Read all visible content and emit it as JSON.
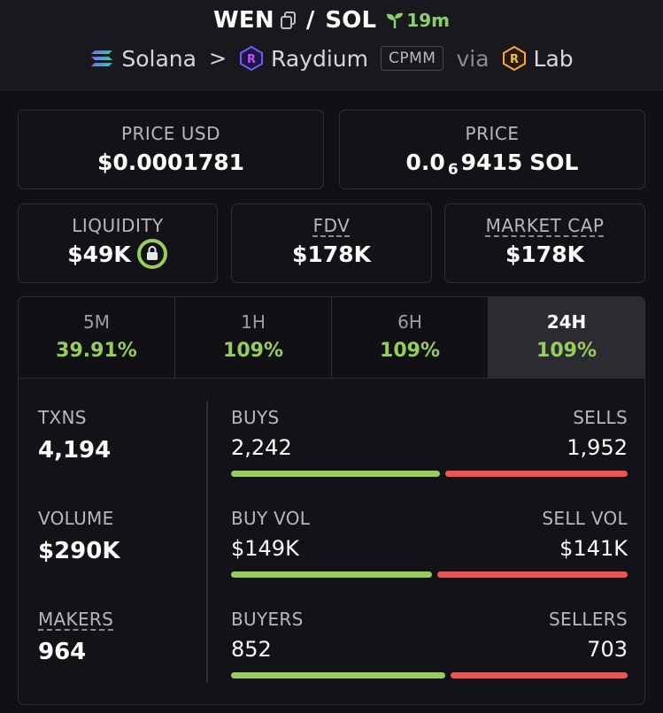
{
  "header": {
    "base_token": "WEN",
    "quote_token": "SOL",
    "separator": "/",
    "age": "19m",
    "chain": "Solana",
    "chevron": ">",
    "dex": "Raydium",
    "pool_type": "CPMM",
    "via": "via",
    "launchpad": "Lab",
    "icons": {
      "copy": "copy-icon",
      "age": "sprout-icon",
      "chain": "solana-icon",
      "dex": "raydium-icon",
      "launchpad": "lab-icon"
    }
  },
  "price_usd": {
    "label": "PRICE USD",
    "value": "$0.0001781"
  },
  "price_native": {
    "label": "PRICE",
    "prefix": "0.0",
    "subscript": "6",
    "digits": "9415",
    "unit": "SOL"
  },
  "liquidity": {
    "label": "LIQUIDITY",
    "value": "$49K",
    "icon": "lock-icon"
  },
  "fdv": {
    "label": "FDV",
    "value": "$178K"
  },
  "market_cap": {
    "label": "MARKET CAP",
    "value": "$178K"
  },
  "tabs": [
    {
      "label": "5M",
      "value": "39.91%"
    },
    {
      "label": "1H",
      "value": "109%"
    },
    {
      "label": "6H",
      "value": "109%"
    },
    {
      "label": "24H",
      "value": "109%",
      "active": true
    }
  ],
  "stats": {
    "txns": {
      "label": "TXNS",
      "value": "4,194"
    },
    "volume": {
      "label": "VOLUME",
      "value": "$290K"
    },
    "makers": {
      "label": "MAKERS",
      "value": "964"
    },
    "buys_sells": {
      "left_label": "BUYS",
      "right_label": "SELLS",
      "left_value": "2,242",
      "right_value": "1,952",
      "left_share": 0.5346
    },
    "vol_split": {
      "left_label": "BUY VOL",
      "right_label": "SELL VOL",
      "left_value": "$149K",
      "right_value": "$141K",
      "left_share": 0.5138
    },
    "buyers_sellers": {
      "left_label": "BUYERS",
      "right_label": "SELLERS",
      "left_value": "852",
      "right_value": "703",
      "left_share": 0.5479
    }
  },
  "colors": {
    "positive": "#98cc5b",
    "negative": "#ef5454",
    "age": "#8ad16a",
    "background": "#111115"
  }
}
